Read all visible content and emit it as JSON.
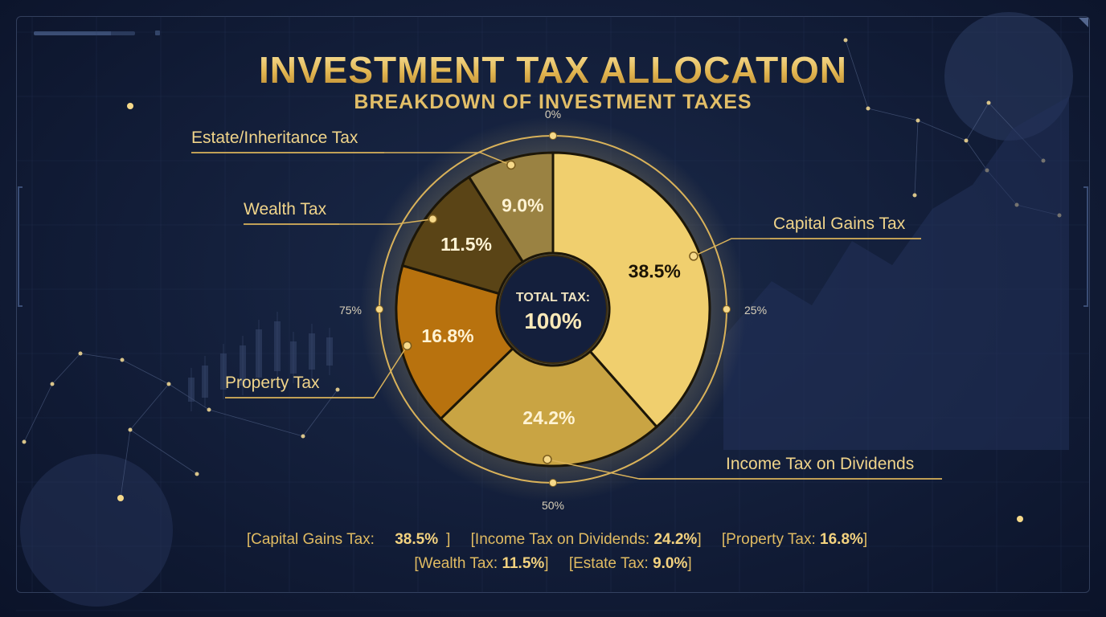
{
  "title": "INVESTMENT TAX ALLOCATION",
  "subtitle": "BREAKDOWN OF INVESTMENT TAXES",
  "center_label": {
    "line1": "TOTAL TAX:",
    "line2": "100%"
  },
  "ring_ticks": [
    "0%",
    "25%",
    "50%",
    "75%"
  ],
  "chart_data": {
    "type": "pie",
    "title": "INVESTMENT TAX ALLOCATION",
    "subtitle": "BREAKDOWN OF INVESTMENT TAXES",
    "categories": [
      "Capital Gains Tax",
      "Income Tax on Dividends",
      "Property Tax",
      "Wealth Tax",
      "Estate/Inheritance Tax"
    ],
    "values": [
      38.5,
      24.2,
      16.8,
      11.5,
      9.0
    ],
    "value_labels": [
      "38.5%",
      "24.2%",
      "16.8%",
      "11.5%",
      "9.0%"
    ],
    "colors": [
      "#f0cf6e",
      "#c9a443",
      "#b8720e",
      "#5a4416",
      "#9a8242"
    ],
    "donut": true
  },
  "legend": [
    {
      "label": "[Capital Gains Tax: ",
      "value": "38.5%",
      "close": "]"
    },
    {
      "label": "[Income Tax on Dividends: ",
      "value": "24.2%",
      "close": "]"
    },
    {
      "label": "[Property Tax: ",
      "value": "16.8%",
      "close": "]"
    },
    {
      "label": "[Wealth Tax: ",
      "value": "11.5%",
      "close": "]"
    },
    {
      "label": "[Estate Tax: ",
      "value": "9.0%",
      "close": "]"
    }
  ],
  "colors": {
    "gold": "#e2be68",
    "background": "#121d38"
  }
}
